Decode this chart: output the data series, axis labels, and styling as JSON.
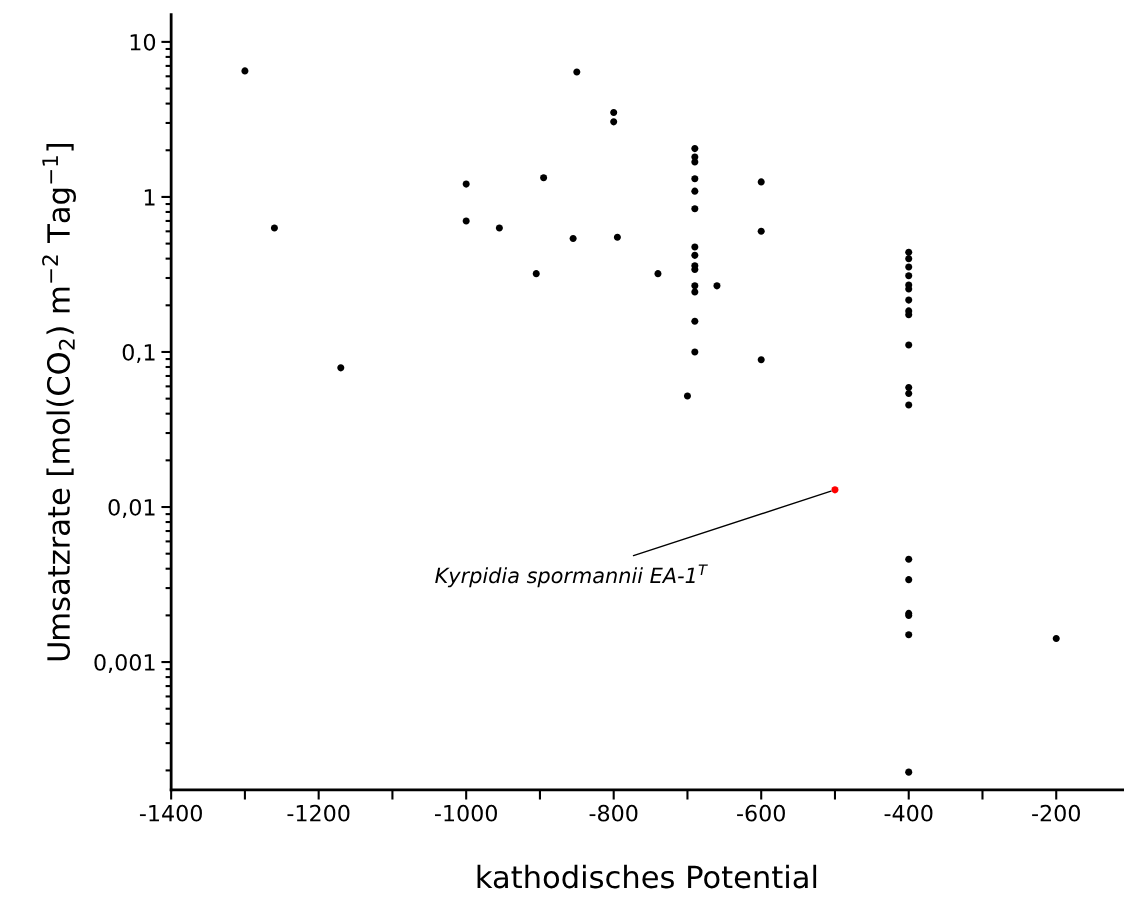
{
  "chart_data": {
    "type": "scatter",
    "xlabel": "kathodisches Potential",
    "ylabel": "Umsatzrate [mol(CO$_{2}$) m$^{−2}$ Tag$^{−1}$]",
    "log": "y",
    "marker": "circle",
    "grid": false,
    "xlim": [
      -1400,
      -110
    ],
    "xticks": [
      -1400,
      {
        "value": -1300,
        "label": null
      },
      -1200,
      {
        "value": -1100,
        "label": null
      },
      -1000,
      {
        "value": -900,
        "label": null
      },
      -800,
      {
        "value": -700,
        "label": null
      },
      -600,
      {
        "value": -500,
        "label": null
      },
      -400,
      {
        "value": -300,
        "label": null
      },
      -200
    ],
    "ylim": [
      0.00015,
      15
    ],
    "yticks": [
      {
        "value": 0.001,
        "label": "0,001"
      },
      {
        "value": 0.01,
        "label": "0,01"
      },
      {
        "value": 0.1,
        "label": "0,1"
      },
      1,
      10
    ],
    "series": [
      {
        "color": "#000000",
        "x": [
          -1300,
          -1260,
          -1170,
          -1000,
          -1000,
          -955,
          -895,
          -905,
          -855,
          -850,
          -800,
          -800,
          -795,
          -690,
          -690,
          -690,
          -690,
          -690,
          -690,
          -690,
          -690,
          -690,
          -690,
          -690,
          -690,
          -690,
          -690,
          -600,
          -600,
          -600,
          -740,
          -660,
          -700,
          -400,
          -400,
          -400,
          -400,
          -400,
          -400,
          -400,
          -400,
          -400,
          -400,
          -400,
          -400,
          -400,
          -400,
          -400,
          -400,
          -400,
          -400,
          -400,
          -200
        ],
        "values": [
          6.5,
          0.63,
          0.079,
          1.21,
          0.7,
          0.63,
          1.33,
          0.32,
          0.54,
          6.4,
          3.5,
          3.05,
          0.55,
          2.05,
          1.81,
          1.68,
          1.31,
          1.09,
          0.84,
          0.475,
          0.42,
          0.36,
          0.34,
          0.267,
          0.244,
          0.158,
          0.1,
          1.25,
          0.6,
          0.089,
          0.32,
          0.267,
          0.052,
          0.44,
          0.4,
          0.353,
          0.31,
          0.27,
          0.255,
          0.216,
          0.184,
          0.174,
          0.111,
          0.059,
          0.054,
          0.0455,
          0.0046,
          0.0034,
          0.00206,
          0.002,
          0.0015,
          0.000195,
          0.00142
        ]
      },
      {
        "color": "#ff0000",
        "x": [
          -500
        ],
        "values": [
          0.0129
        ]
      }
    ],
    "annotations": [
      {
        "text": "Kyrpidia spormannii EA-1$^{T}$",
        "x": -500,
        "y": 0.0129
      }
    ]
  }
}
